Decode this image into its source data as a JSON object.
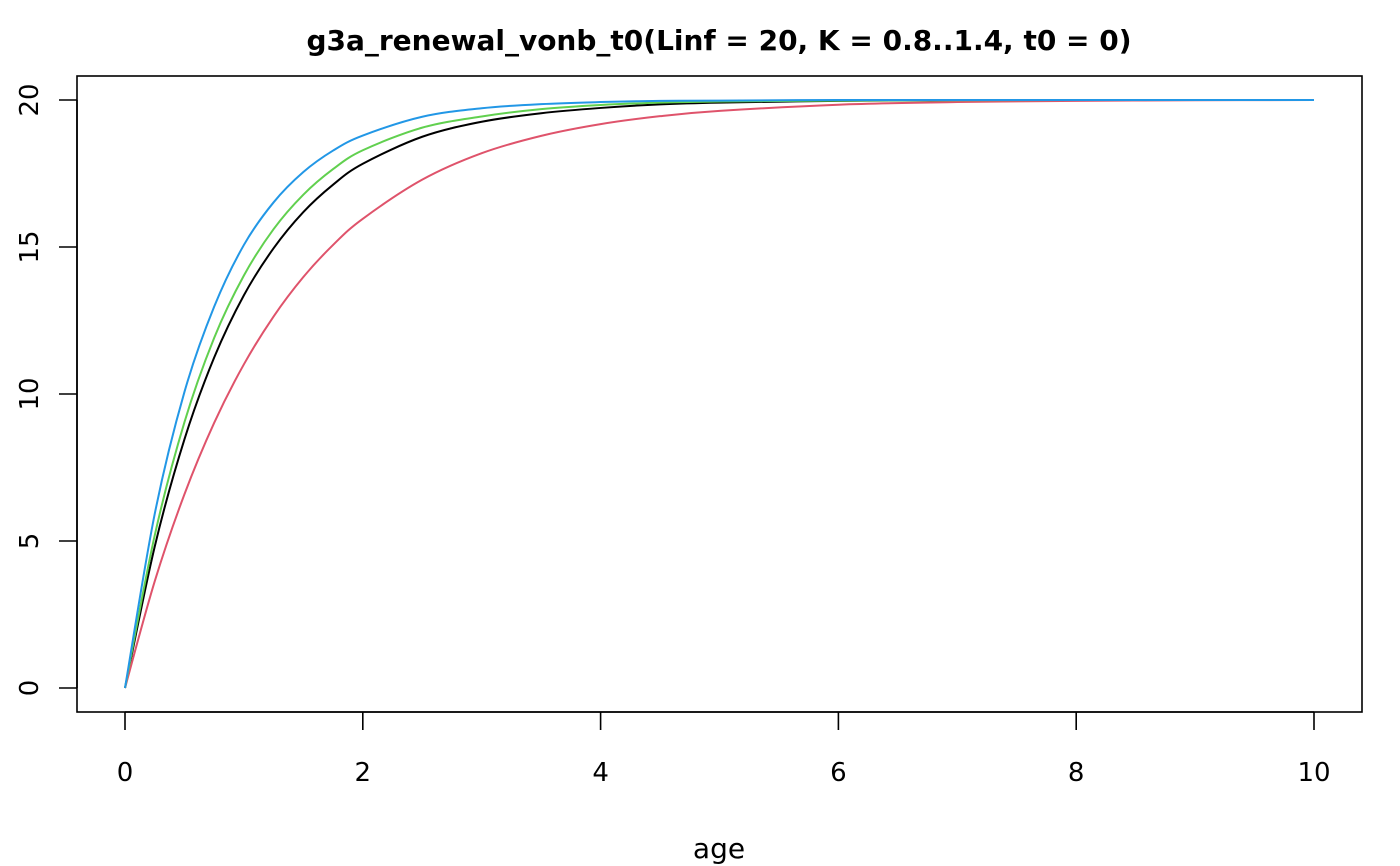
{
  "chart_data": {
    "type": "line",
    "title": "g3a_renewal_vonb_t0(Linf = 20, K = 0.8..1.4, t0 = 0)",
    "xlabel": "age",
    "ylabel": "",
    "xlim": [
      0,
      10
    ],
    "ylim": [
      0,
      20
    ],
    "x_ticks": [
      0,
      2,
      4,
      6,
      8,
      10
    ],
    "y_ticks": [
      0,
      5,
      10,
      15,
      20
    ],
    "x_tick_labels": [
      "0",
      "2",
      "4",
      "6",
      "8",
      "10"
    ],
    "y_tick_labels": [
      "0",
      "5",
      "10",
      "15",
      "20"
    ],
    "grid": false,
    "legend": "none",
    "x": [
      0,
      0.25,
      0.5,
      0.75,
      1,
      1.25,
      1.5,
      1.75,
      2,
      2.5,
      3,
      3.5,
      4,
      4.5,
      5,
      6,
      7,
      8,
      9,
      10
    ],
    "series": [
      {
        "color": "#000000",
        "values": [
          0,
          4.81,
          8.46,
          11.24,
          13.36,
          14.96,
          16.19,
          17.12,
          17.83,
          18.75,
          19.26,
          19.55,
          19.73,
          19.85,
          19.91,
          19.97,
          19.99,
          20.0,
          20.0,
          20.0
        ]
      },
      {
        "color": "#DF536B",
        "values": [
          0,
          3.63,
          6.59,
          9.02,
          11.01,
          12.64,
          13.98,
          15.07,
          15.96,
          17.29,
          18.19,
          18.78,
          19.18,
          19.45,
          19.63,
          19.84,
          19.93,
          19.97,
          19.99,
          20.0
        ]
      },
      {
        "color": "#61D04F",
        "values": [
          0,
          5.19,
          9.04,
          11.91,
          14.03,
          15.61,
          16.78,
          17.65,
          18.29,
          19.06,
          19.44,
          19.69,
          19.83,
          19.91,
          19.95,
          19.98,
          19.99,
          20.0,
          20.0,
          20.0
        ]
      },
      {
        "color": "#2297E6",
        "values": [
          0,
          5.92,
          10.07,
          12.97,
          15.07,
          16.52,
          17.55,
          18.28,
          18.79,
          19.43,
          19.72,
          19.86,
          19.93,
          19.97,
          19.98,
          20.0,
          20.0,
          20.0,
          20.0,
          20.0
        ]
      }
    ]
  }
}
